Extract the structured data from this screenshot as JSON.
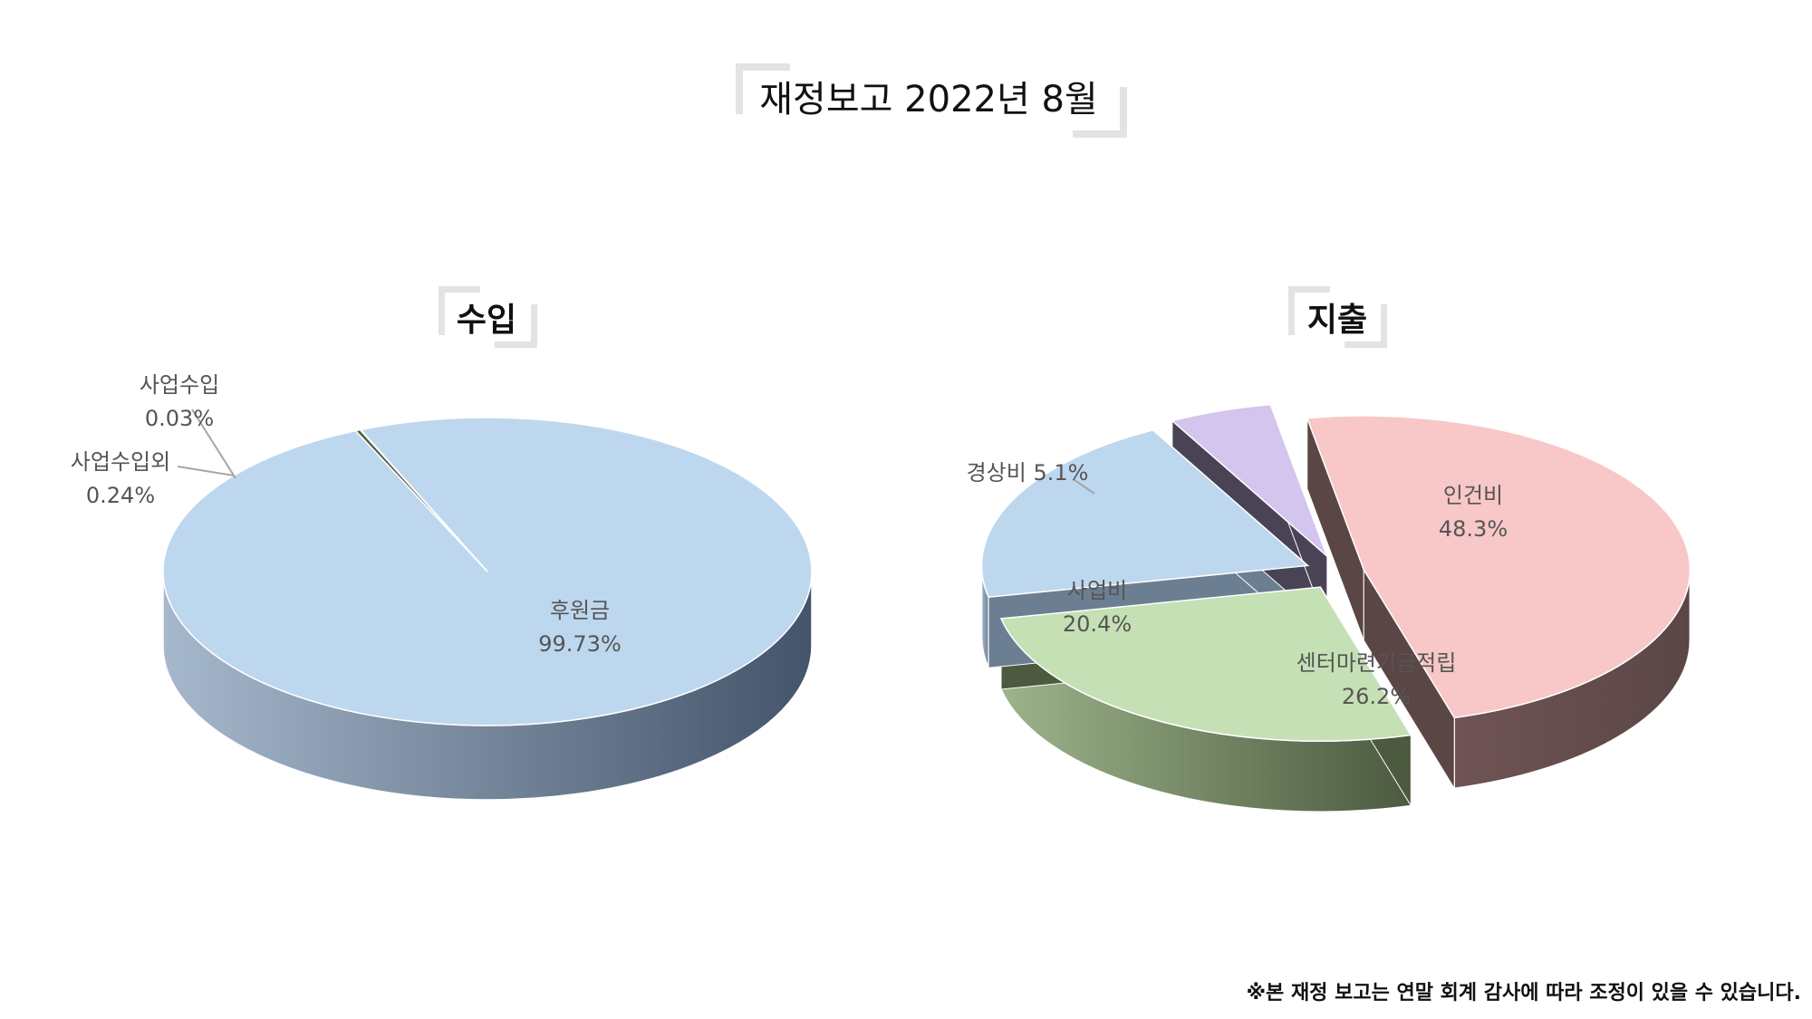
{
  "page": {
    "title": "재정보고 2022년 8월",
    "footnote": "※본 재정 보고는 연말 회계 감사에 따라 조정이 있을 수 있습니다."
  },
  "chart_data": [
    {
      "type": "pie",
      "title": "수입",
      "unit": "%",
      "slices": [
        {
          "label": "후원금",
          "value": 99.73,
          "value_label": "99.73%",
          "color": "#bdd7ee",
          "side_dark": "#44546a",
          "side_light": "#a6b8cc"
        },
        {
          "label": "사업수입외",
          "value": 0.24,
          "value_label": "0.24%",
          "color": "#4f5d49",
          "side_dark": "#3a4636",
          "side_light": "#4f5d49"
        },
        {
          "label": "사업수입",
          "value": 0.03,
          "value_label": "0.03%",
          "color": "#c9c9c9",
          "side_dark": "#8a8a8a",
          "side_light": "#b0b0b0"
        }
      ]
    },
    {
      "type": "pie",
      "title": "지출",
      "unit": "%",
      "slices": [
        {
          "label": "인건비",
          "value": 48.3,
          "value_label": "48.3%",
          "color": "#f8c7c7",
          "side_dark": "#5b4646",
          "side_light": "#6f5454"
        },
        {
          "label": "센터마련기금적립",
          "value": 26.2,
          "value_label": "26.2%",
          "color": "#c5e0b4",
          "side_dark": "#4c5a40",
          "side_light": "#9cb48a"
        },
        {
          "label": "사업비",
          "value": 20.4,
          "value_label": "20.4%",
          "color": "#bdd7ee",
          "side_dark": "#6c7e92",
          "side_light": "#a4b8cc"
        },
        {
          "label": "경상비",
          "value": 5.1,
          "value_label": "5.1%",
          "color": "#d4c5ef",
          "side_dark": "#4a4356",
          "side_light": "#6a5f7c"
        }
      ]
    }
  ]
}
